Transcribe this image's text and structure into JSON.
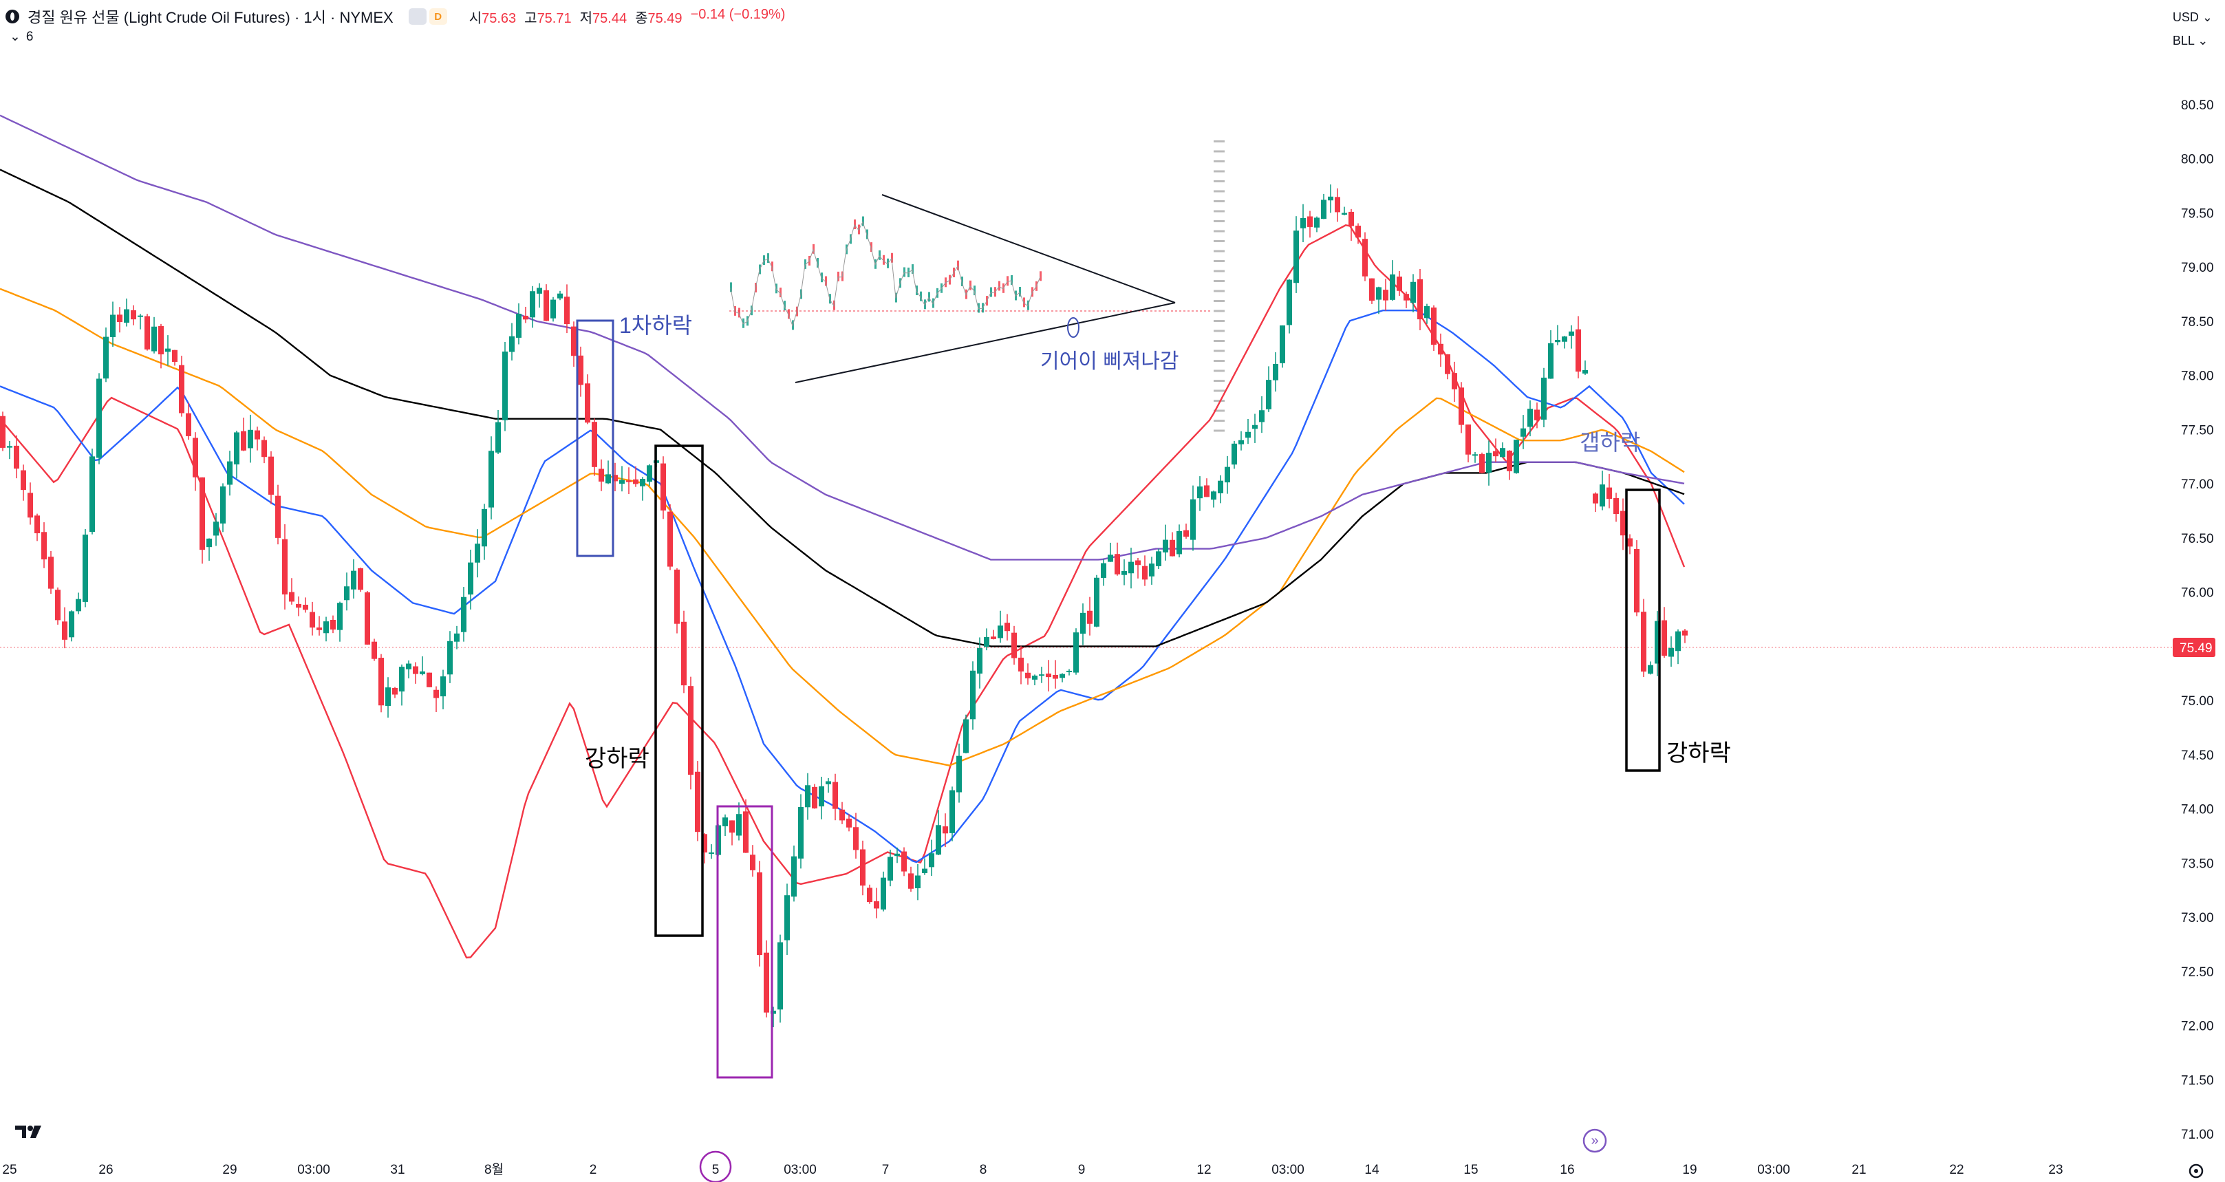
{
  "header": {
    "title": "경질 원유 선물 (Light Crude Oil Futures) · 1시 · NYMEX",
    "badge1": "",
    "badge2": "D",
    "ohlc": [
      {
        "label": "시",
        "value": "75.63"
      },
      {
        "label": "고",
        "value": "75.71"
      },
      {
        "label": "저",
        "value": "75.44"
      },
      {
        "label": "종",
        "value": "75.49"
      },
      {
        "label": "",
        "value": "−0.14 (−0.19%)"
      }
    ],
    "indicator_toggle": "6",
    "currency": "USD",
    "unit": "BLL"
  },
  "colors": {
    "up": "#089981",
    "down": "#f23645",
    "ma_red": "#f23645",
    "ma_blue": "#2962ff",
    "ma_orange": "#ff9800",
    "ma_black": "#000000",
    "ma_purple": "#7e57c2",
    "last_price_bg": "#f23645"
  },
  "chart_data": {
    "type": "candlestick",
    "title": "",
    "price_axis_ticks": [
      "80.50",
      "80.00",
      "79.50",
      "79.00",
      "78.50",
      "78.00",
      "77.50",
      "77.00",
      "76.50",
      "76.00",
      "75.50",
      "75.00",
      "74.50",
      "74.00",
      "73.50",
      "73.00",
      "72.50",
      "72.00",
      "71.50",
      "71.00"
    ],
    "last_price": "75.49",
    "time_axis_ticks": [
      "25",
      "26",
      "29",
      "03:00",
      "31",
      "8월",
      "2",
      "5",
      "03:00",
      "7",
      "8",
      "9",
      "12",
      "03:00",
      "14",
      "15",
      "16",
      "19",
      "03:00",
      "21",
      "22",
      "23"
    ],
    "highlighted_time_tick": "5",
    "series": [
      {
        "name": "",
        "color_key": "ma_red",
        "points": [
          [
            0,
            77.6
          ],
          [
            80,
            77.0
          ],
          [
            160,
            77.8
          ],
          [
            260,
            77.5
          ],
          [
            330,
            76.4
          ],
          [
            380,
            75.6
          ],
          [
            420,
            75.7
          ],
          [
            500,
            74.5
          ],
          [
            560,
            73.5
          ],
          [
            620,
            73.4
          ],
          [
            680,
            72.6
          ],
          [
            720,
            72.9
          ],
          [
            765,
            74.1
          ],
          [
            830,
            75.0
          ],
          [
            880,
            74.0
          ],
          [
            980,
            75.0
          ],
          [
            1040,
            74.6
          ],
          [
            1110,
            73.7
          ],
          [
            1160,
            73.3
          ],
          [
            1230,
            73.4
          ],
          [
            1290,
            73.6
          ],
          [
            1340,
            73.5
          ],
          [
            1400,
            74.8
          ],
          [
            1460,
            75.4
          ],
          [
            1520,
            75.6
          ],
          [
            1580,
            76.4
          ],
          [
            1640,
            76.8
          ],
          [
            1700,
            77.2
          ],
          [
            1760,
            77.6
          ],
          [
            1810,
            78.2
          ],
          [
            1860,
            78.8
          ],
          [
            1900,
            79.2
          ],
          [
            1960,
            79.4
          ],
          [
            2000,
            79.0
          ],
          [
            2050,
            78.7
          ],
          [
            2100,
            78.2
          ],
          [
            2140,
            77.6
          ],
          [
            2190,
            77.2
          ],
          [
            2250,
            77.7
          ],
          [
            2290,
            77.8
          ],
          [
            2350,
            77.5
          ],
          [
            2400,
            77.0
          ],
          [
            2450,
            76.2
          ]
        ]
      },
      {
        "name": "",
        "color_key": "ma_blue",
        "points": [
          [
            0,
            77.9
          ],
          [
            80,
            77.7
          ],
          [
            140,
            77.2
          ],
          [
            210,
            77.6
          ],
          [
            260,
            77.9
          ],
          [
            330,
            77.1
          ],
          [
            400,
            76.8
          ],
          [
            470,
            76.7
          ],
          [
            540,
            76.2
          ],
          [
            600,
            75.9
          ],
          [
            660,
            75.8
          ],
          [
            720,
            76.1
          ],
          [
            790,
            77.2
          ],
          [
            860,
            77.5
          ],
          [
            910,
            77.2
          ],
          [
            960,
            77.0
          ],
          [
            1010,
            76.2
          ],
          [
            1070,
            75.3
          ],
          [
            1110,
            74.6
          ],
          [
            1160,
            74.2
          ],
          [
            1220,
            74.0
          ],
          [
            1270,
            73.8
          ],
          [
            1330,
            73.5
          ],
          [
            1380,
            73.7
          ],
          [
            1430,
            74.1
          ],
          [
            1480,
            74.8
          ],
          [
            1540,
            75.1
          ],
          [
            1600,
            75.0
          ],
          [
            1660,
            75.3
          ],
          [
            1720,
            75.8
          ],
          [
            1780,
            76.3
          ],
          [
            1830,
            76.8
          ],
          [
            1880,
            77.3
          ],
          [
            1920,
            77.9
          ],
          [
            1960,
            78.5
          ],
          [
            2010,
            78.6
          ],
          [
            2060,
            78.6
          ],
          [
            2110,
            78.4
          ],
          [
            2170,
            78.1
          ],
          [
            2220,
            77.8
          ],
          [
            2270,
            77.7
          ],
          [
            2310,
            77.9
          ],
          [
            2360,
            77.6
          ],
          [
            2400,
            77.1
          ],
          [
            2450,
            76.8
          ]
        ]
      },
      {
        "name": "",
        "color_key": "ma_orange",
        "points": [
          [
            0,
            78.8
          ],
          [
            80,
            78.6
          ],
          [
            160,
            78.3
          ],
          [
            240,
            78.1
          ],
          [
            320,
            77.9
          ],
          [
            400,
            77.5
          ],
          [
            470,
            77.3
          ],
          [
            540,
            76.9
          ],
          [
            620,
            76.6
          ],
          [
            700,
            76.5
          ],
          [
            780,
            76.8
          ],
          [
            860,
            77.1
          ],
          [
            940,
            77.0
          ],
          [
            1010,
            76.5
          ],
          [
            1080,
            75.9
          ],
          [
            1150,
            75.3
          ],
          [
            1220,
            74.9
          ],
          [
            1300,
            74.5
          ],
          [
            1380,
            74.4
          ],
          [
            1460,
            74.6
          ],
          [
            1540,
            74.9
          ],
          [
            1620,
            75.1
          ],
          [
            1700,
            75.3
          ],
          [
            1780,
            75.6
          ],
          [
            1860,
            76.0
          ],
          [
            1920,
            76.6
          ],
          [
            1970,
            77.1
          ],
          [
            2030,
            77.5
          ],
          [
            2090,
            77.8
          ],
          [
            2150,
            77.6
          ],
          [
            2210,
            77.4
          ],
          [
            2270,
            77.4
          ],
          [
            2330,
            77.5
          ],
          [
            2400,
            77.3
          ],
          [
            2450,
            77.1
          ]
        ]
      },
      {
        "name": "",
        "color_key": "ma_black",
        "points": [
          [
            0,
            79.9
          ],
          [
            100,
            79.6
          ],
          [
            200,
            79.2
          ],
          [
            300,
            78.8
          ],
          [
            400,
            78.4
          ],
          [
            480,
            78.0
          ],
          [
            560,
            77.8
          ],
          [
            640,
            77.7
          ],
          [
            720,
            77.6
          ],
          [
            800,
            77.6
          ],
          [
            880,
            77.6
          ],
          [
            960,
            77.5
          ],
          [
            1040,
            77.1
          ],
          [
            1120,
            76.6
          ],
          [
            1200,
            76.2
          ],
          [
            1280,
            75.9
          ],
          [
            1360,
            75.6
          ],
          [
            1440,
            75.5
          ],
          [
            1520,
            75.5
          ],
          [
            1600,
            75.5
          ],
          [
            1680,
            75.5
          ],
          [
            1760,
            75.7
          ],
          [
            1840,
            75.9
          ],
          [
            1920,
            76.3
          ],
          [
            1980,
            76.7
          ],
          [
            2040,
            77.0
          ],
          [
            2100,
            77.1
          ],
          [
            2160,
            77.1
          ],
          [
            2220,
            77.2
          ],
          [
            2290,
            77.2
          ],
          [
            2360,
            77.1
          ],
          [
            2450,
            76.9
          ]
        ]
      },
      {
        "name": "",
        "color_key": "ma_purple",
        "points": [
          [
            0,
            80.4
          ],
          [
            100,
            80.1
          ],
          [
            200,
            79.8
          ],
          [
            300,
            79.6
          ],
          [
            400,
            79.3
          ],
          [
            500,
            79.1
          ],
          [
            600,
            78.9
          ],
          [
            700,
            78.7
          ],
          [
            780,
            78.5
          ],
          [
            860,
            78.4
          ],
          [
            940,
            78.2
          ],
          [
            1000,
            77.9
          ],
          [
            1060,
            77.6
          ],
          [
            1120,
            77.2
          ],
          [
            1200,
            76.9
          ],
          [
            1280,
            76.7
          ],
          [
            1360,
            76.5
          ],
          [
            1440,
            76.3
          ],
          [
            1520,
            76.3
          ],
          [
            1600,
            76.3
          ],
          [
            1680,
            76.4
          ],
          [
            1760,
            76.4
          ],
          [
            1840,
            76.5
          ],
          [
            1920,
            76.7
          ],
          [
            1980,
            76.9
          ],
          [
            2040,
            77.0
          ],
          [
            2100,
            77.1
          ],
          [
            2160,
            77.2
          ],
          [
            2220,
            77.2
          ],
          [
            2290,
            77.2
          ],
          [
            2360,
            77.1
          ],
          [
            2450,
            77.0
          ]
        ]
      }
    ],
    "candle_path": [
      [
        0,
        77.6
      ],
      [
        60,
        76.3
      ],
      [
        90,
        75.5
      ],
      [
        120,
        76.0
      ],
      [
        150,
        78.4
      ],
      [
        200,
        78.5
      ],
      [
        260,
        78.0
      ],
      [
        300,
        76.3
      ],
      [
        340,
        77.5
      ],
      [
        380,
        77.3
      ],
      [
        420,
        75.9
      ],
      [
        470,
        75.6
      ],
      [
        520,
        76.1
      ],
      [
        560,
        74.9
      ],
      [
        600,
        75.4
      ],
      [
        640,
        75.0
      ],
      [
        700,
        76.6
      ],
      [
        740,
        78.3
      ],
      [
        780,
        78.7
      ],
      [
        820,
        78.6
      ],
      [
        850,
        77.6
      ],
      [
        880,
        77.0
      ],
      [
        920,
        76.9
      ],
      [
        960,
        77.1
      ],
      [
        990,
        75.6
      ],
      [
        1010,
        73.8
      ],
      [
        1030,
        73.4
      ],
      [
        1050,
        74.0
      ],
      [
        1080,
        73.8
      ],
      [
        1100,
        73.1
      ],
      [
        1120,
        71.9
      ],
      [
        1140,
        72.9
      ],
      [
        1170,
        74.1
      ],
      [
        1200,
        74.2
      ],
      [
        1240,
        73.7
      ],
      [
        1270,
        73.0
      ],
      [
        1300,
        73.8
      ],
      [
        1330,
        73.3
      ],
      [
        1360,
        73.6
      ],
      [
        1390,
        74.2
      ],
      [
        1420,
        75.4
      ],
      [
        1460,
        75.6
      ],
      [
        1500,
        75.3
      ],
      [
        1540,
        75.2
      ],
      [
        1580,
        75.8
      ],
      [
        1620,
        76.3
      ],
      [
        1660,
        76.2
      ],
      [
        1700,
        76.4
      ],
      [
        1740,
        76.8
      ],
      [
        1780,
        77.2
      ],
      [
        1820,
        77.5
      ],
      [
        1860,
        78.2
      ],
      [
        1890,
        79.4
      ],
      [
        1930,
        79.7
      ],
      [
        1960,
        79.6
      ],
      [
        1990,
        78.7
      ],
      [
        2030,
        78.9
      ],
      [
        2070,
        78.6
      ],
      [
        2110,
        77.8
      ],
      [
        2150,
        77.2
      ],
      [
        2190,
        77.2
      ],
      [
        2230,
        77.6
      ],
      [
        2270,
        78.6
      ],
      [
        2300,
        78.1
      ]
    ],
    "gap_candles": [
      [
        2315,
        76.9
      ],
      [
        2350,
        76.8
      ],
      [
        2370,
        76.3
      ],
      [
        2390,
        75.3
      ],
      [
        2410,
        75.6
      ],
      [
        2430,
        75.5
      ],
      [
        2445,
        75.49
      ]
    ],
    "inset": {
      "label": "기어이 삐져나감"
    },
    "annotations": [
      {
        "label": "1차하락",
        "color": "#3f51b5"
      },
      {
        "label": "강하락",
        "color": "#000000"
      },
      {
        "label": "갭하락",
        "color": "#5c6bc0"
      },
      {
        "label": "강하락",
        "color": "#000000"
      }
    ]
  }
}
